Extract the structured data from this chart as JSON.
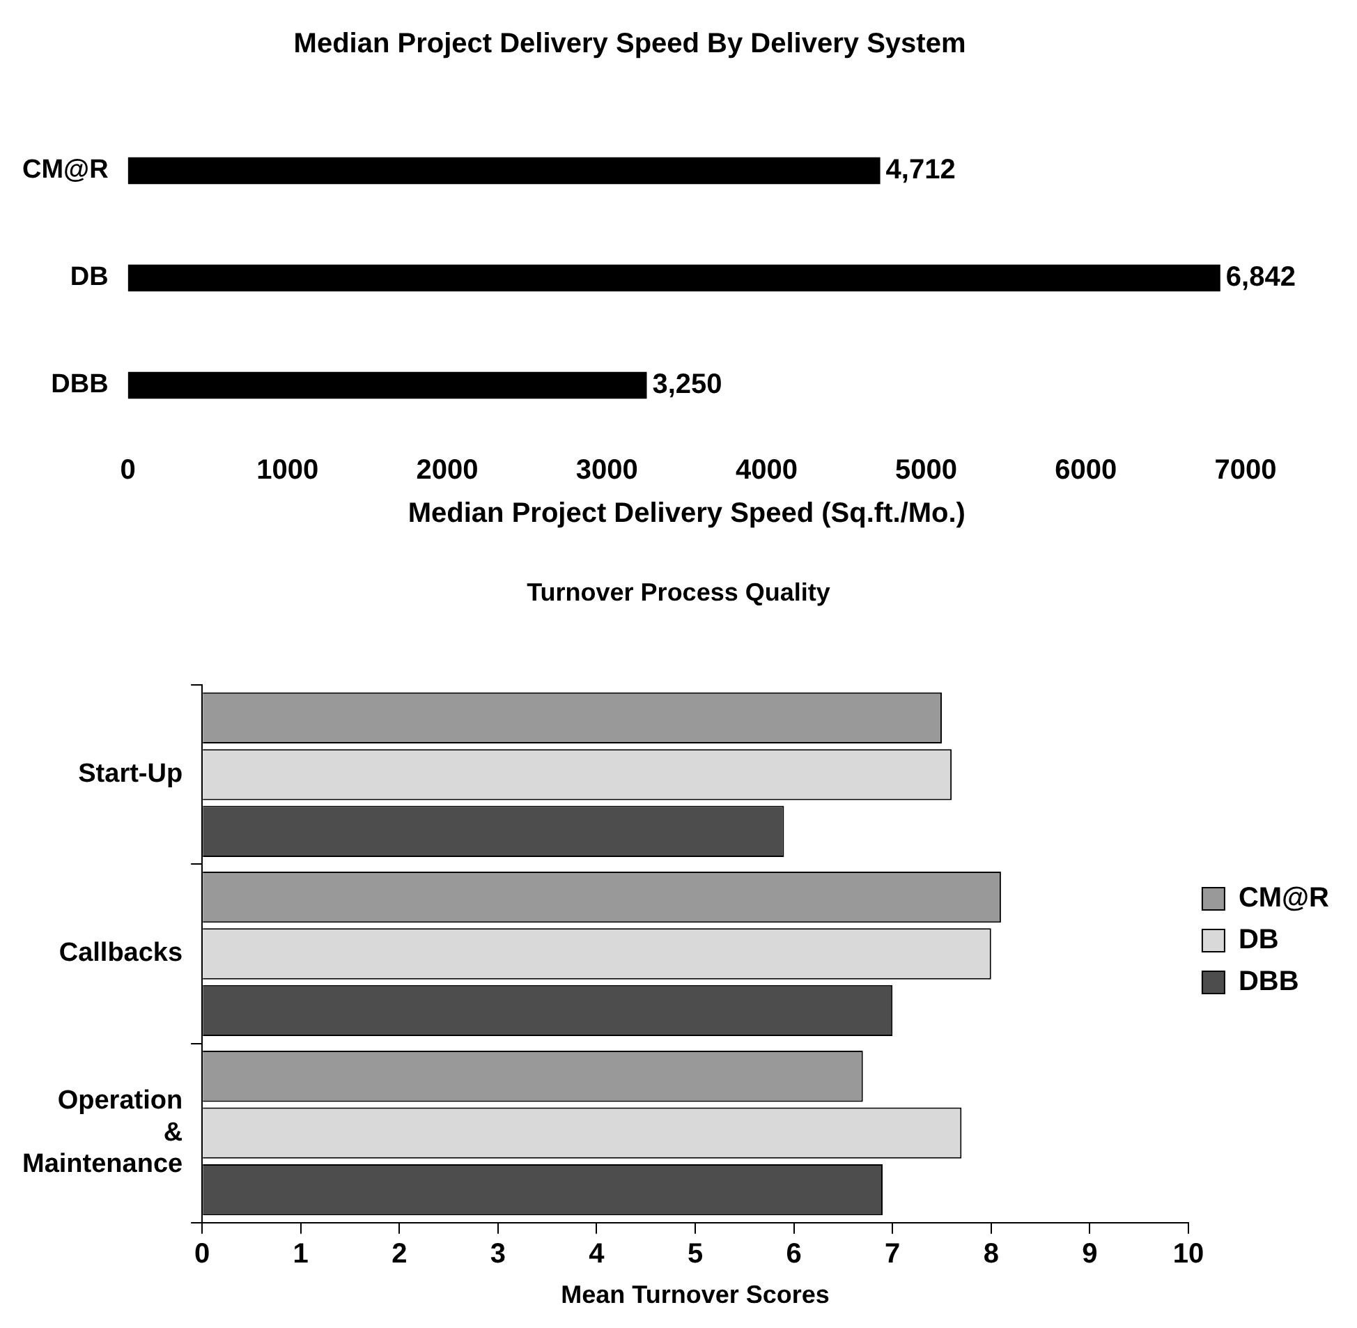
{
  "chart_data": [
    {
      "type": "bar",
      "orientation": "horizontal",
      "title": "Median Project Delivery Speed By Delivery System",
      "xlabel": "Median Project Delivery Speed (Sq.ft./Mo.)",
      "categories": [
        "CM@R",
        "DB",
        "DBB"
      ],
      "values": [
        4712,
        6842,
        3250
      ],
      "color": "#000000",
      "value_labels": [
        "4,712",
        "6,842",
        "3,250"
      ],
      "xlim": [
        0,
        7000
      ],
      "xticks": [
        0,
        1000,
        2000,
        3000,
        4000,
        5000,
        6000,
        7000
      ],
      "grid": false,
      "legend": false
    },
    {
      "type": "bar",
      "orientation": "horizontal",
      "title": "Turnover Process Quality",
      "xlabel": "Mean Turnover Scores",
      "categories": [
        "Start-Up",
        "Callbacks",
        "Operation & Maintenance"
      ],
      "series": [
        {
          "name": "CM@R",
          "color": "#999999",
          "values": [
            7.5,
            8.1,
            6.7
          ]
        },
        {
          "name": "DB",
          "color": "#d9d9d9",
          "values": [
            7.6,
            8.0,
            7.7
          ]
        },
        {
          "name": "DBB",
          "color": "#4d4d4d",
          "values": [
            5.9,
            7.0,
            6.9
          ]
        }
      ],
      "xlim": [
        0,
        10
      ],
      "xticks": [
        0,
        1,
        2,
        3,
        4,
        5,
        6,
        7,
        8,
        9,
        10
      ],
      "grid": false,
      "legend": "right"
    }
  ]
}
